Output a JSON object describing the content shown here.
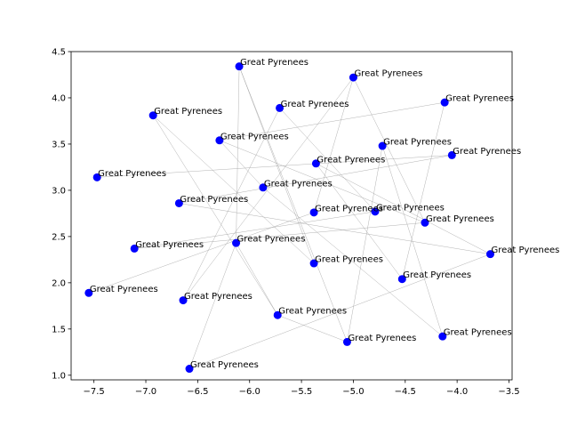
{
  "chart_data": {
    "type": "scatter",
    "title": "",
    "xlabel": "",
    "ylabel": "",
    "xlim": [
      -7.72,
      -3.47
    ],
    "ylim": [
      0.95,
      4.5
    ],
    "grid": false,
    "marker_color": "#0000ff",
    "edge_color": "#999999",
    "xticks": [
      -7.5,
      -7.0,
      -6.5,
      -6.0,
      -5.5,
      -5.0,
      -4.5,
      -4.0,
      -3.5
    ],
    "xtick_labels": [
      "−7.5",
      "−7.0",
      "−6.5",
      "−6.0",
      "−5.5",
      "−5.0",
      "−4.5",
      "−4.0",
      "−3.5"
    ],
    "yticks": [
      1.0,
      1.5,
      2.0,
      2.5,
      3.0,
      3.5,
      4.0,
      4.5
    ],
    "ytick_labels": [
      "1.0",
      "1.5",
      "2.0",
      "2.5",
      "3.0",
      "3.5",
      "4.0",
      "4.5"
    ],
    "points": [
      {
        "label": "Great Pyrenees",
        "x": -6.1,
        "y": 4.34
      },
      {
        "label": "Great Pyrenees",
        "x": -5.0,
        "y": 4.22
      },
      {
        "label": "Great Pyrenees",
        "x": -4.12,
        "y": 3.95
      },
      {
        "label": "Great Pyrenees",
        "x": -5.71,
        "y": 3.89
      },
      {
        "label": "Great Pyrenees",
        "x": -6.93,
        "y": 3.81
      },
      {
        "label": "Great Pyrenees",
        "x": -6.29,
        "y": 3.54
      },
      {
        "label": "Great Pyrenees",
        "x": -4.72,
        "y": 3.48
      },
      {
        "label": "Great Pyrenees",
        "x": -4.05,
        "y": 3.38
      },
      {
        "label": "Great Pyrenees",
        "x": -5.36,
        "y": 3.29
      },
      {
        "label": "Great Pyrenees",
        "x": -7.47,
        "y": 3.14
      },
      {
        "label": "Great Pyrenees",
        "x": -5.87,
        "y": 3.03
      },
      {
        "label": "Great Pyrenees",
        "x": -6.68,
        "y": 2.86
      },
      {
        "label": "Great Pyrenees",
        "x": -5.38,
        "y": 2.76
      },
      {
        "label": "Great Pyrenees",
        "x": -4.79,
        "y": 2.77
      },
      {
        "label": "Great Pyrenees",
        "x": -4.31,
        "y": 2.65
      },
      {
        "label": "Great Pyrenees",
        "x": -6.13,
        "y": 2.43
      },
      {
        "label": "Great Pyrenees",
        "x": -7.11,
        "y": 2.37
      },
      {
        "label": "Great Pyrenees",
        "x": -3.68,
        "y": 2.31
      },
      {
        "label": "Great Pyrenees",
        "x": -5.38,
        "y": 2.21
      },
      {
        "label": "Great Pyrenees",
        "x": -4.53,
        "y": 2.04
      },
      {
        "label": "Great Pyrenees",
        "x": -7.55,
        "y": 1.89
      },
      {
        "label": "Great Pyrenees",
        "x": -6.64,
        "y": 1.81
      },
      {
        "label": "Great Pyrenees",
        "x": -5.73,
        "y": 1.65
      },
      {
        "label": "Great Pyrenees",
        "x": -4.14,
        "y": 1.42
      },
      {
        "label": "Great Pyrenees",
        "x": -5.06,
        "y": 1.36
      },
      {
        "label": "Great Pyrenees",
        "x": -6.58,
        "y": 1.07
      }
    ],
    "edges": [
      [
        0,
        15
      ],
      [
        0,
        18
      ],
      [
        1,
        12
      ],
      [
        1,
        14
      ],
      [
        2,
        5
      ],
      [
        2,
        19
      ],
      [
        3,
        21
      ],
      [
        3,
        13
      ],
      [
        4,
        18
      ],
      [
        4,
        22
      ],
      [
        5,
        10
      ],
      [
        5,
        14
      ],
      [
        6,
        23
      ],
      [
        6,
        24
      ],
      [
        7,
        9
      ],
      [
        7,
        11
      ],
      [
        8,
        17
      ],
      [
        8,
        19
      ],
      [
        10,
        23
      ],
      [
        11,
        17
      ],
      [
        12,
        20
      ],
      [
        13,
        16
      ],
      [
        15,
        25
      ],
      [
        15,
        22
      ],
      [
        16,
        14
      ],
      [
        21,
        1
      ],
      [
        22,
        24
      ],
      [
        24,
        0
      ],
      [
        25,
        17
      ]
    ]
  }
}
